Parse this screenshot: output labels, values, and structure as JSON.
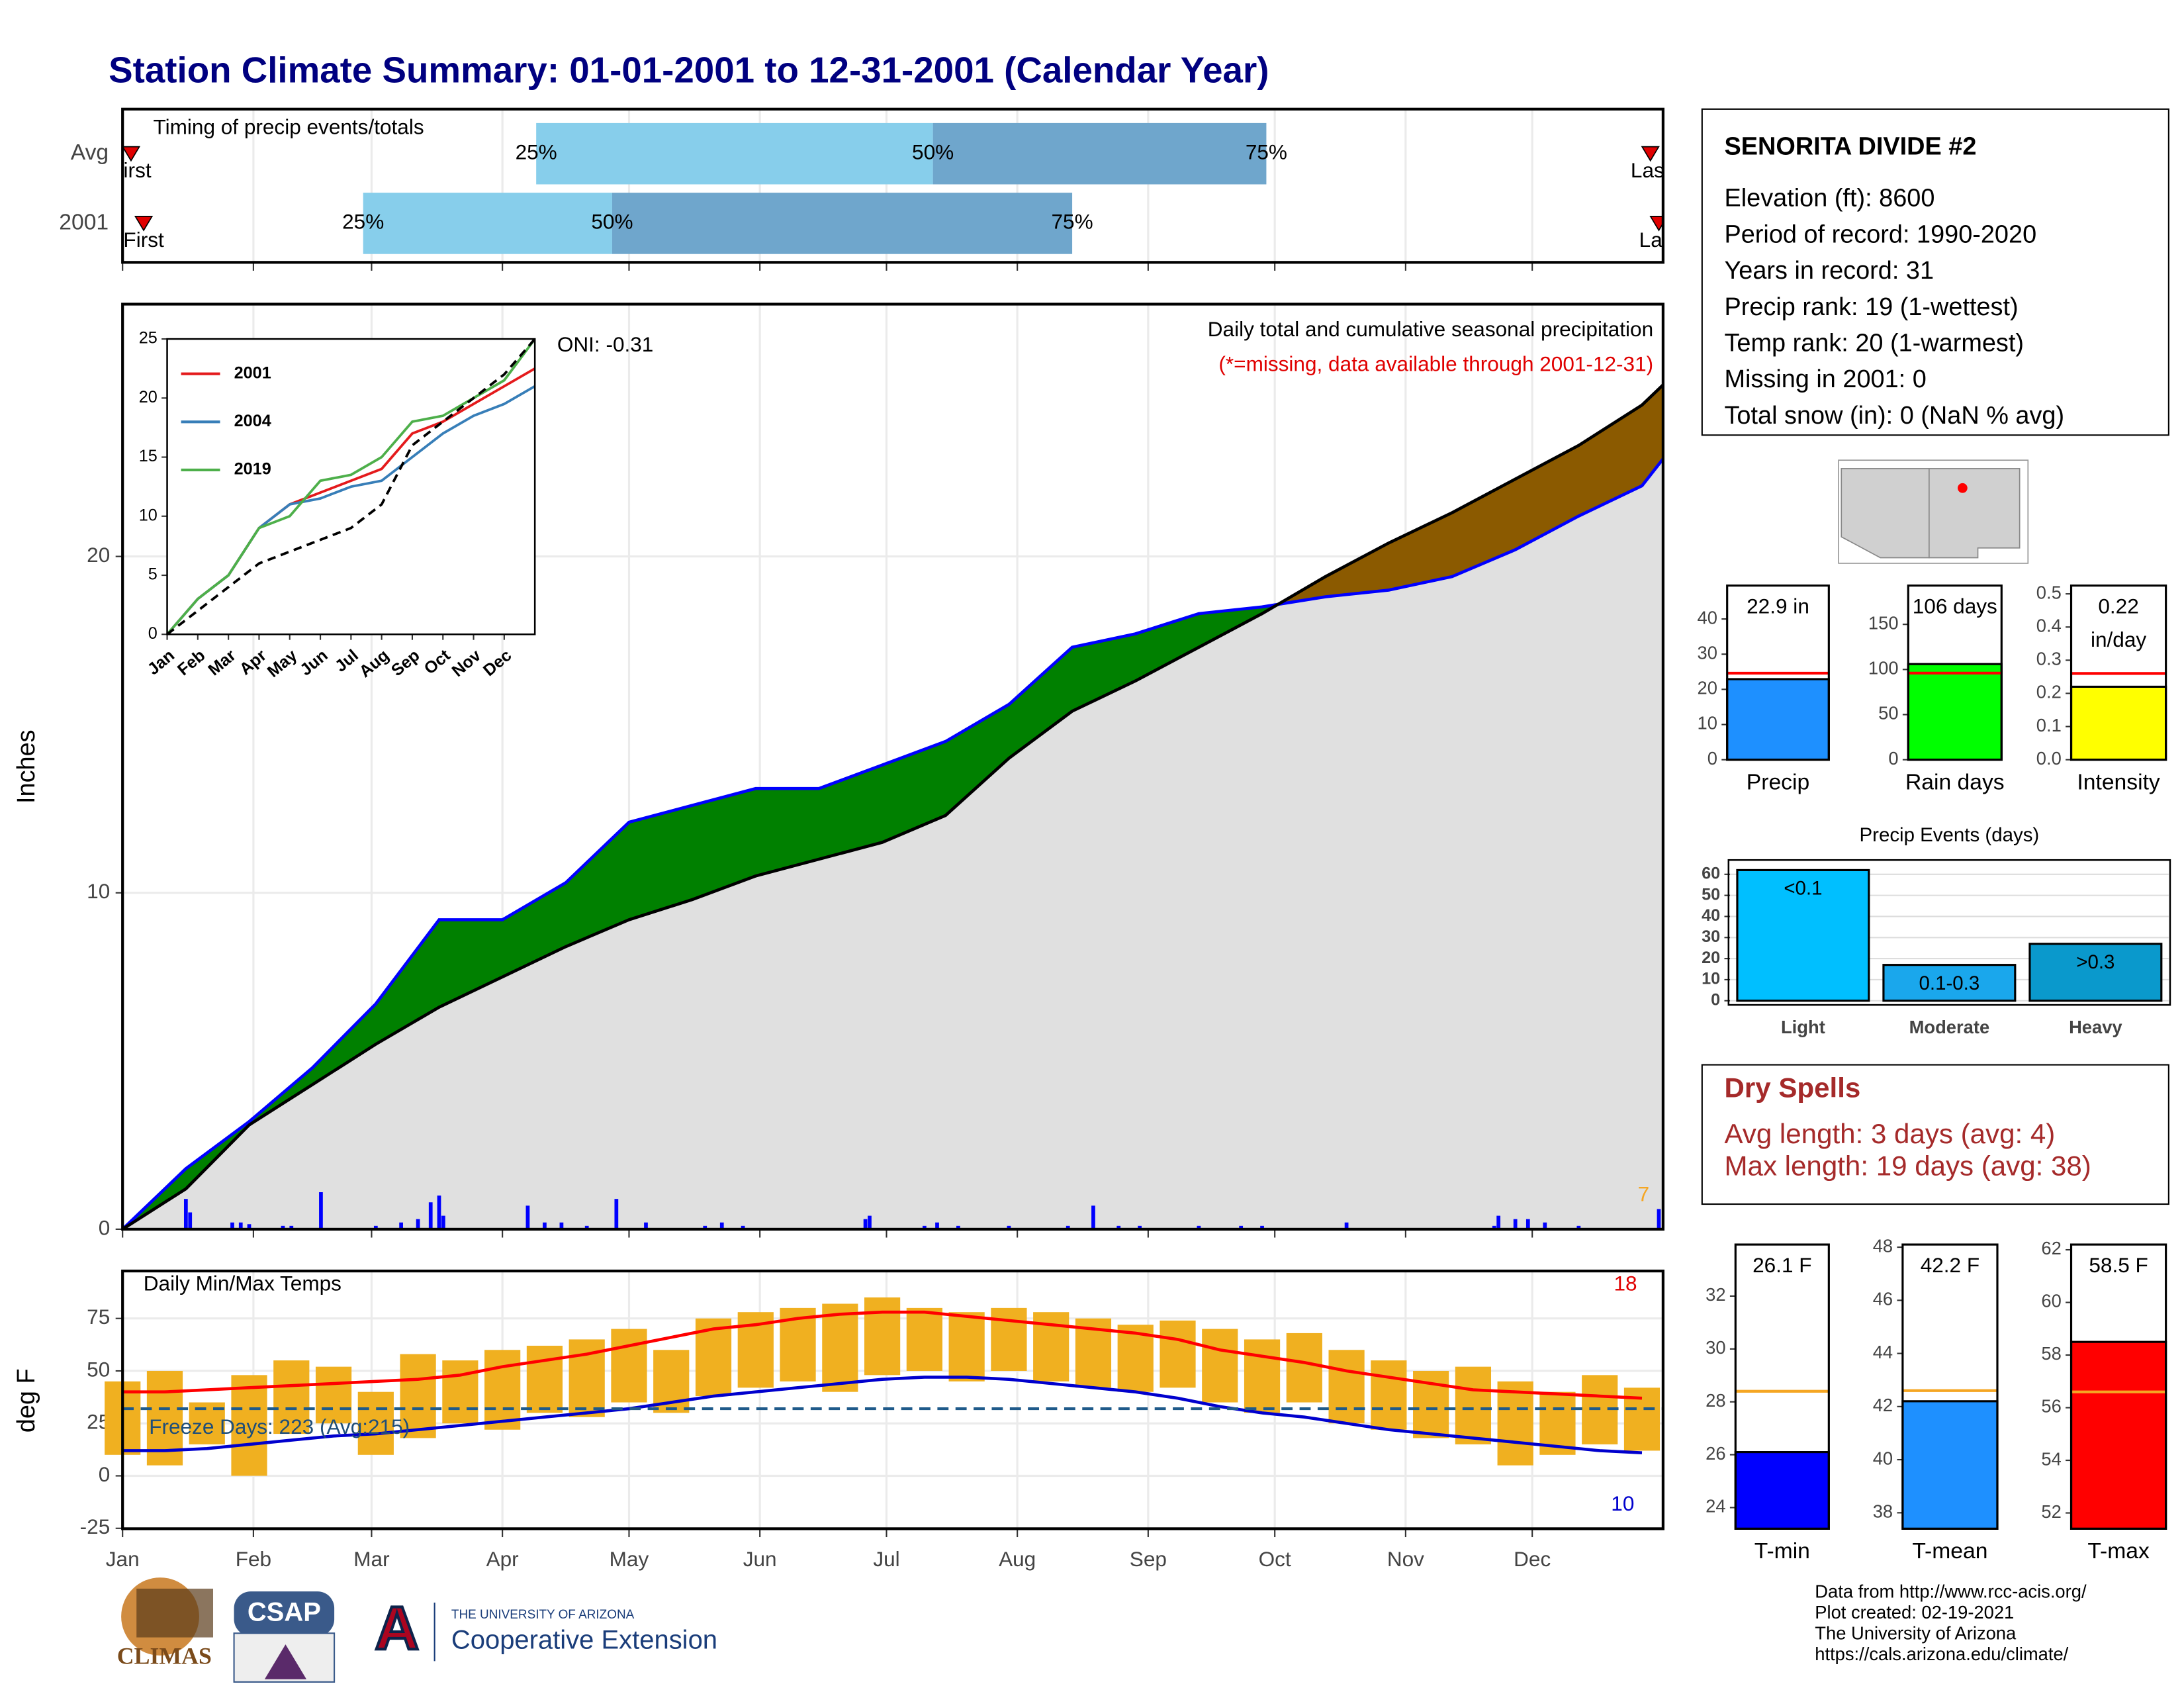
{
  "title": "Station Climate Summary: 01-01-2001 to 12-31-2001 (Calendar Year)",
  "chart_data": [
    {
      "type": "range",
      "title": "Timing of precip events/totals",
      "categories": [
        "Avg",
        "2001"
      ],
      "quartiles": [
        [
          98,
          192,
          271
        ],
        [
          57,
          116,
          225
        ]
      ],
      "quartile_labels": [
        "25%",
        "50%",
        "75%"
      ],
      "first": [
        2,
        5
      ],
      "last": [
        362,
        364
      ],
      "first_label": "First",
      "last_label": "Last",
      "xlim": [
        0,
        365
      ],
      "xticks": [
        0,
        31,
        59,
        90,
        120,
        151,
        181,
        212,
        243,
        273,
        304,
        334
      ],
      "colors": [
        "#87ceeb",
        "#6fa6cc"
      ],
      "marker_color": "#e00000"
    },
    {
      "type": "area",
      "ylabel": "Inches",
      "annotations": [
        "Daily total and cumulative seasonal precipitation",
        "(*=missing, data available through 2001-12-31)"
      ],
      "oni": "ONI: -0.31",
      "missing_count": "7",
      "xlim": [
        0,
        365
      ],
      "xticks": [
        0,
        31,
        59,
        90,
        120,
        151,
        181,
        212,
        243,
        273,
        304,
        334
      ],
      "ylim": [
        0,
        27.5
      ],
      "yticks": [
        0,
        10,
        20
      ],
      "grid": true,
      "x": [
        0,
        15,
        30,
        45,
        60,
        75,
        90,
        105,
        120,
        135,
        150,
        165,
        180,
        195,
        210,
        225,
        240,
        255,
        270,
        285,
        300,
        315,
        330,
        345,
        360,
        365
      ],
      "series": [
        {
          "color": "#0000ff",
          "values": [
            0,
            1.8,
            3.2,
            4.8,
            6.7,
            9.2,
            9.2,
            10.3,
            12.1,
            12.6,
            13.1,
            13.1,
            13.8,
            14.5,
            15.6,
            17.3,
            17.7,
            18.3,
            18.5,
            18.8,
            19.0,
            19.4,
            20.2,
            21.2,
            22.1,
            22.9
          ]
        },
        {
          "color": "#000000",
          "values": [
            0,
            1.2,
            3.1,
            4.3,
            5.5,
            6.6,
            7.5,
            8.4,
            9.2,
            9.8,
            10.5,
            11.0,
            11.5,
            12.3,
            14.0,
            15.4,
            16.3,
            17.3,
            18.3,
            19.4,
            20.4,
            21.3,
            22.3,
            23.3,
            24.5,
            25.1
          ]
        }
      ],
      "fill_colors": [
        "#008000",
        "#8b5a00",
        "#e0e0e0"
      ],
      "daily": {
        "color": "#0000ff",
        "x": [
          15,
          16,
          26,
          28,
          30,
          38,
          40,
          47,
          60,
          66,
          70,
          73,
          75,
          76,
          96,
          100,
          104,
          110,
          117,
          124,
          138,
          142,
          147,
          176,
          177,
          190,
          193,
          198,
          210,
          224,
          230,
          236,
          241,
          255,
          265,
          270,
          290,
          325,
          326,
          330,
          333,
          337,
          345,
          364
        ],
        "values": [
          0.9,
          0.5,
          0.2,
          0.2,
          0.15,
          0.1,
          0.1,
          1.1,
          0.1,
          0.2,
          0.3,
          0.8,
          1.0,
          0.4,
          0.7,
          0.2,
          0.2,
          0.1,
          0.9,
          0.2,
          0.1,
          0.2,
          0.1,
          0.3,
          0.4,
          0.1,
          0.2,
          0.1,
          0.1,
          0.1,
          0.7,
          0.1,
          0.1,
          0.1,
          0.1,
          0.1,
          0.2,
          0.1,
          0.4,
          0.3,
          0.3,
          0.2,
          0.1,
          0.6
        ]
      }
    },
    {
      "type": "line",
      "xlim": [
        0,
        12
      ],
      "ylim": [
        0,
        25
      ],
      "yticks": [
        0,
        5,
        10,
        15,
        20,
        25
      ],
      "xticks": [
        {
          "value": 0,
          "label": "Jan"
        },
        {
          "value": 1,
          "label": "Feb"
        },
        {
          "value": 2,
          "label": "Mar"
        },
        {
          "value": 3,
          "label": "Apr"
        },
        {
          "value": 4,
          "label": "May"
        },
        {
          "value": 5,
          "label": "Jun"
        },
        {
          "value": 6,
          "label": "Jul"
        },
        {
          "value": 7,
          "label": "Aug"
        },
        {
          "value": 8,
          "label": "Sep"
        },
        {
          "value": 9,
          "label": "Oct"
        },
        {
          "value": 10,
          "label": "Nov"
        },
        {
          "value": 11,
          "label": "Dec"
        }
      ],
      "x": [
        0,
        1,
        2,
        3,
        4,
        5,
        6,
        7,
        8,
        9,
        10,
        11,
        12
      ],
      "series": [
        {
          "name": "2001",
          "color": "#e41a1c",
          "values": [
            0,
            3,
            5,
            9,
            11,
            12,
            13,
            14,
            17,
            18,
            19.5,
            21,
            22.5
          ]
        },
        {
          "name": "2004",
          "color": "#377eb8",
          "values": [
            0,
            3,
            5,
            9,
            11,
            11.5,
            12.5,
            13,
            15,
            17,
            18.5,
            19.5,
            21
          ]
        },
        {
          "name": "2019",
          "color": "#4daf4a",
          "values": [
            0,
            3,
            5,
            9,
            10,
            13,
            13.5,
            15,
            18,
            18.5,
            20,
            21.5,
            25
          ]
        },
        {
          "color": "#000000",
          "dashed": true,
          "values": [
            0,
            2,
            4,
            6,
            7,
            8,
            9,
            11,
            16,
            18,
            20,
            22,
            25
          ]
        }
      ]
    },
    {
      "type": "bar",
      "categories": [
        "Precip"
      ],
      "values": [
        22.9
      ],
      "value_labels": [
        "22.9 in"
      ],
      "avg_values": [
        24.6
      ],
      "color": "#1e90ff",
      "ref_color": "#ff0000",
      "ylim": [
        0,
        49.5
      ],
      "yticks": [
        0,
        10,
        20,
        30,
        40
      ]
    },
    {
      "type": "bar",
      "categories": [
        "Rain days"
      ],
      "values": [
        106
      ],
      "value_labels": [
        "106 days"
      ],
      "avg_values": [
        96
      ],
      "color": "#00ff00",
      "ref_color": "#ff0000",
      "ylim": [
        0,
        193
      ],
      "yticks": [
        0,
        50,
        100,
        150
      ]
    },
    {
      "type": "bar",
      "categories": [
        "Intensity"
      ],
      "values": [
        0.22
      ],
      "value_labels": [
        "0.22"
      ],
      "value_unit": "in/day",
      "avg_values": [
        0.26
      ],
      "color": "#ffff00",
      "ref_color": "#ff0000",
      "ylim": [
        0,
        0.525
      ],
      "yticks": [
        {
          "value": 0,
          "label": "0.0"
        },
        0.1,
        0.2,
        0.3,
        0.4,
        0.5
      ]
    },
    {
      "type": "bar",
      "title": "Precip Events (days)",
      "categories": [
        "Light",
        "Moderate",
        "Heavy"
      ],
      "values": [
        62,
        17,
        27
      ],
      "bar_labels": [
        "<0.1",
        "0.1-0.3",
        ">0.3"
      ],
      "colors": [
        "#00bfff",
        "#1aa7ec",
        "#0a99cc"
      ],
      "ylim": [
        0,
        64.8
      ],
      "yticks": [
        0,
        10,
        20,
        30,
        40,
        50,
        60
      ],
      "grid": true
    },
    {
      "type": "range",
      "title": "Daily Min/Max Temps",
      "ylabel": "deg F",
      "freeze_label": "Freeze Days: 223 (Avg:215)",
      "freeze_line": 32,
      "high_count": "18",
      "low_count": "10",
      "xlim": [
        0,
        365
      ],
      "ylim": [
        -25.2,
        97.6
      ],
      "yticks": [
        -25,
        0,
        25,
        50,
        75
      ],
      "grid": true,
      "xticks": [
        {
          "value": 0,
          "label": "Jan"
        },
        {
          "value": 31,
          "label": "Feb"
        },
        {
          "value": 59,
          "label": "Mar"
        },
        {
          "value": 90,
          "label": "Apr"
        },
        {
          "value": 120,
          "label": "May"
        },
        {
          "value": 151,
          "label": "Jun"
        },
        {
          "value": 181,
          "label": "Jul"
        },
        {
          "value": 212,
          "label": "Aug"
        },
        {
          "value": 243,
          "label": "Sep"
        },
        {
          "value": 273,
          "label": "Oct"
        },
        {
          "value": 304,
          "label": "Nov"
        },
        {
          "value": 334,
          "label": "Dec"
        }
      ],
      "x": [
        0,
        10,
        20,
        30,
        40,
        50,
        60,
        70,
        80,
        90,
        100,
        110,
        120,
        130,
        140,
        150,
        160,
        170,
        180,
        190,
        200,
        210,
        220,
        230,
        240,
        250,
        260,
        270,
        280,
        290,
        300,
        310,
        320,
        330,
        340,
        350,
        360
      ],
      "bar_color": "#f0b020",
      "daily_max": [
        45,
        50,
        35,
        48,
        55,
        52,
        40,
        58,
        55,
        60,
        62,
        65,
        70,
        60,
        75,
        78,
        80,
        82,
        85,
        80,
        78,
        80,
        78,
        75,
        72,
        74,
        70,
        65,
        68,
        60,
        55,
        50,
        52,
        45,
        40,
        48,
        42
      ],
      "daily_min": [
        10,
        5,
        15,
        0,
        20,
        25,
        10,
        18,
        25,
        22,
        30,
        28,
        35,
        30,
        38,
        42,
        45,
        40,
        48,
        50,
        45,
        50,
        45,
        42,
        40,
        42,
        35,
        30,
        35,
        25,
        22,
        18,
        15,
        5,
        10,
        15,
        12
      ],
      "series": [
        {
          "color": "#ff0000",
          "values": [
            40,
            40,
            41,
            42,
            43,
            44,
            45,
            46,
            48,
            52,
            55,
            58,
            62,
            66,
            70,
            72,
            75,
            77,
            78,
            78,
            76,
            74,
            72,
            70,
            68,
            65,
            60,
            57,
            54,
            50,
            47,
            44,
            41,
            40,
            39,
            38,
            37
          ]
        },
        {
          "color": "#0000cd",
          "values": [
            12,
            12,
            13,
            15,
            17,
            19,
            20,
            22,
            24,
            26,
            28,
            30,
            32,
            35,
            38,
            40,
            42,
            44,
            46,
            47,
            47,
            46,
            44,
            42,
            40,
            37,
            33,
            30,
            28,
            25,
            22,
            20,
            18,
            16,
            14,
            12,
            11
          ]
        }
      ]
    },
    {
      "type": "bar",
      "categories": [
        "T-min"
      ],
      "values": [
        26.1
      ],
      "value_labels": [
        "26.1 F"
      ],
      "avg_values": [
        28.4
      ],
      "color": "#0000ff",
      "ref_color": "#f5a623",
      "ylim": [
        23.2,
        33.95
      ],
      "yticks": [
        24,
        26,
        28,
        30,
        32
      ]
    },
    {
      "type": "bar",
      "categories": [
        "T-mean"
      ],
      "values": [
        42.2
      ],
      "value_labels": [
        "42.2 F"
      ],
      "avg_values": [
        42.6
      ],
      "color": "#1e90ff",
      "ref_color": "#f5a623",
      "ylim": [
        37.4,
        48.1
      ],
      "yticks": [
        38,
        40,
        42,
        44,
        46,
        48
      ]
    },
    {
      "type": "bar",
      "categories": [
        "T-max"
      ],
      "values": [
        58.5
      ],
      "value_labels": [
        "58.5 F"
      ],
      "avg_values": [
        56.6
      ],
      "color": "#ff0000",
      "ref_color": "#f5a623",
      "ylim": [
        51.4,
        62.2
      ],
      "yticks": [
        52,
        54,
        56,
        58,
        60,
        62
      ]
    }
  ],
  "station": {
    "name": "SENORITA DIVIDE #2",
    "lines": [
      "Elevation (ft): 8600",
      "Period of record: 1990-2020",
      "Years in record: 31",
      "Precip rank: 19 (1-wettest)",
      "Temp rank: 20 (1-warmest)",
      "Missing in 2001: 0",
      "Total snow (in): 0 (NaN % avg)"
    ]
  },
  "dry_spells": {
    "title": "Dry Spells",
    "lines": [
      "Avg length: 3 days (avg: 4)",
      "Max length: 19 days (avg: 38)"
    ]
  },
  "logos": {
    "climas": "CLIMAS",
    "csap": "CSAP",
    "ua": "A",
    "ua_name": "THE UNIVERSITY OF ARIZONA",
    "ua_unit": "Cooperative Extension"
  },
  "credits": [
    "Data from http://www.rcc-acis.org/",
    "Plot created: 02-19-2021",
    "The University of Arizona",
    "https://cals.arizona.edu/climate/"
  ]
}
